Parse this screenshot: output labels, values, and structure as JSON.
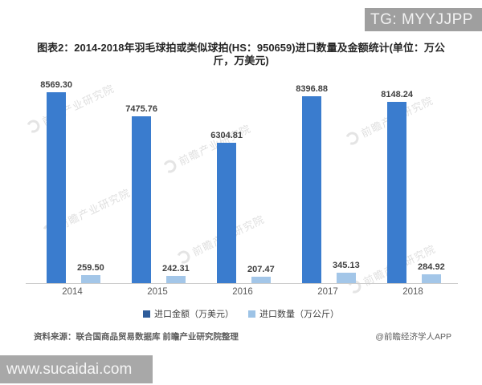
{
  "header": {
    "tg_label": "TG: MYYJJPP"
  },
  "chart_data": {
    "type": "bar",
    "title": "图表2：2014-2018年羽毛球拍或类似球拍(HS：950659)进口数量及金额统计(单位：万公斤，万美元)",
    "categories": [
      "2014",
      "2015",
      "2016",
      "2017",
      "2018"
    ],
    "series": [
      {
        "name": "进口金额（万美元）",
        "values": [
          8569.3,
          7475.76,
          6304.81,
          8396.88,
          8148.24
        ],
        "labels": [
          "8569.30",
          "7475.76",
          "6304.81",
          "8396.88",
          "8148.24"
        ],
        "color": "#3a7cce",
        "legend_color": "#2e5c9a",
        "axis": "primary"
      },
      {
        "name": "进口数量（万公斤）",
        "values": [
          259.5,
          242.31,
          207.47,
          345.13,
          284.92
        ],
        "labels": [
          "259.50",
          "242.31",
          "207.47",
          "345.13",
          "284.92"
        ],
        "color": "#a3c6e8",
        "legend_color": "#9dc3e6",
        "axis": "secondary"
      }
    ],
    "ylim": [
      0,
      9000
    ],
    "ylim_secondary": [
      0,
      6500
    ],
    "grid": false,
    "legend_position": "bottom",
    "xlabel": "",
    "ylabel": ""
  },
  "watermark": {
    "text": "前瞻产业研究院"
  },
  "footer": {
    "source": "资料来源：联合国商品贸易数据库 前瞻产业研究院整理",
    "credit": "@前瞻经济学人APP"
  },
  "bottom_bar": {
    "url": "www.sucaidai.com"
  }
}
